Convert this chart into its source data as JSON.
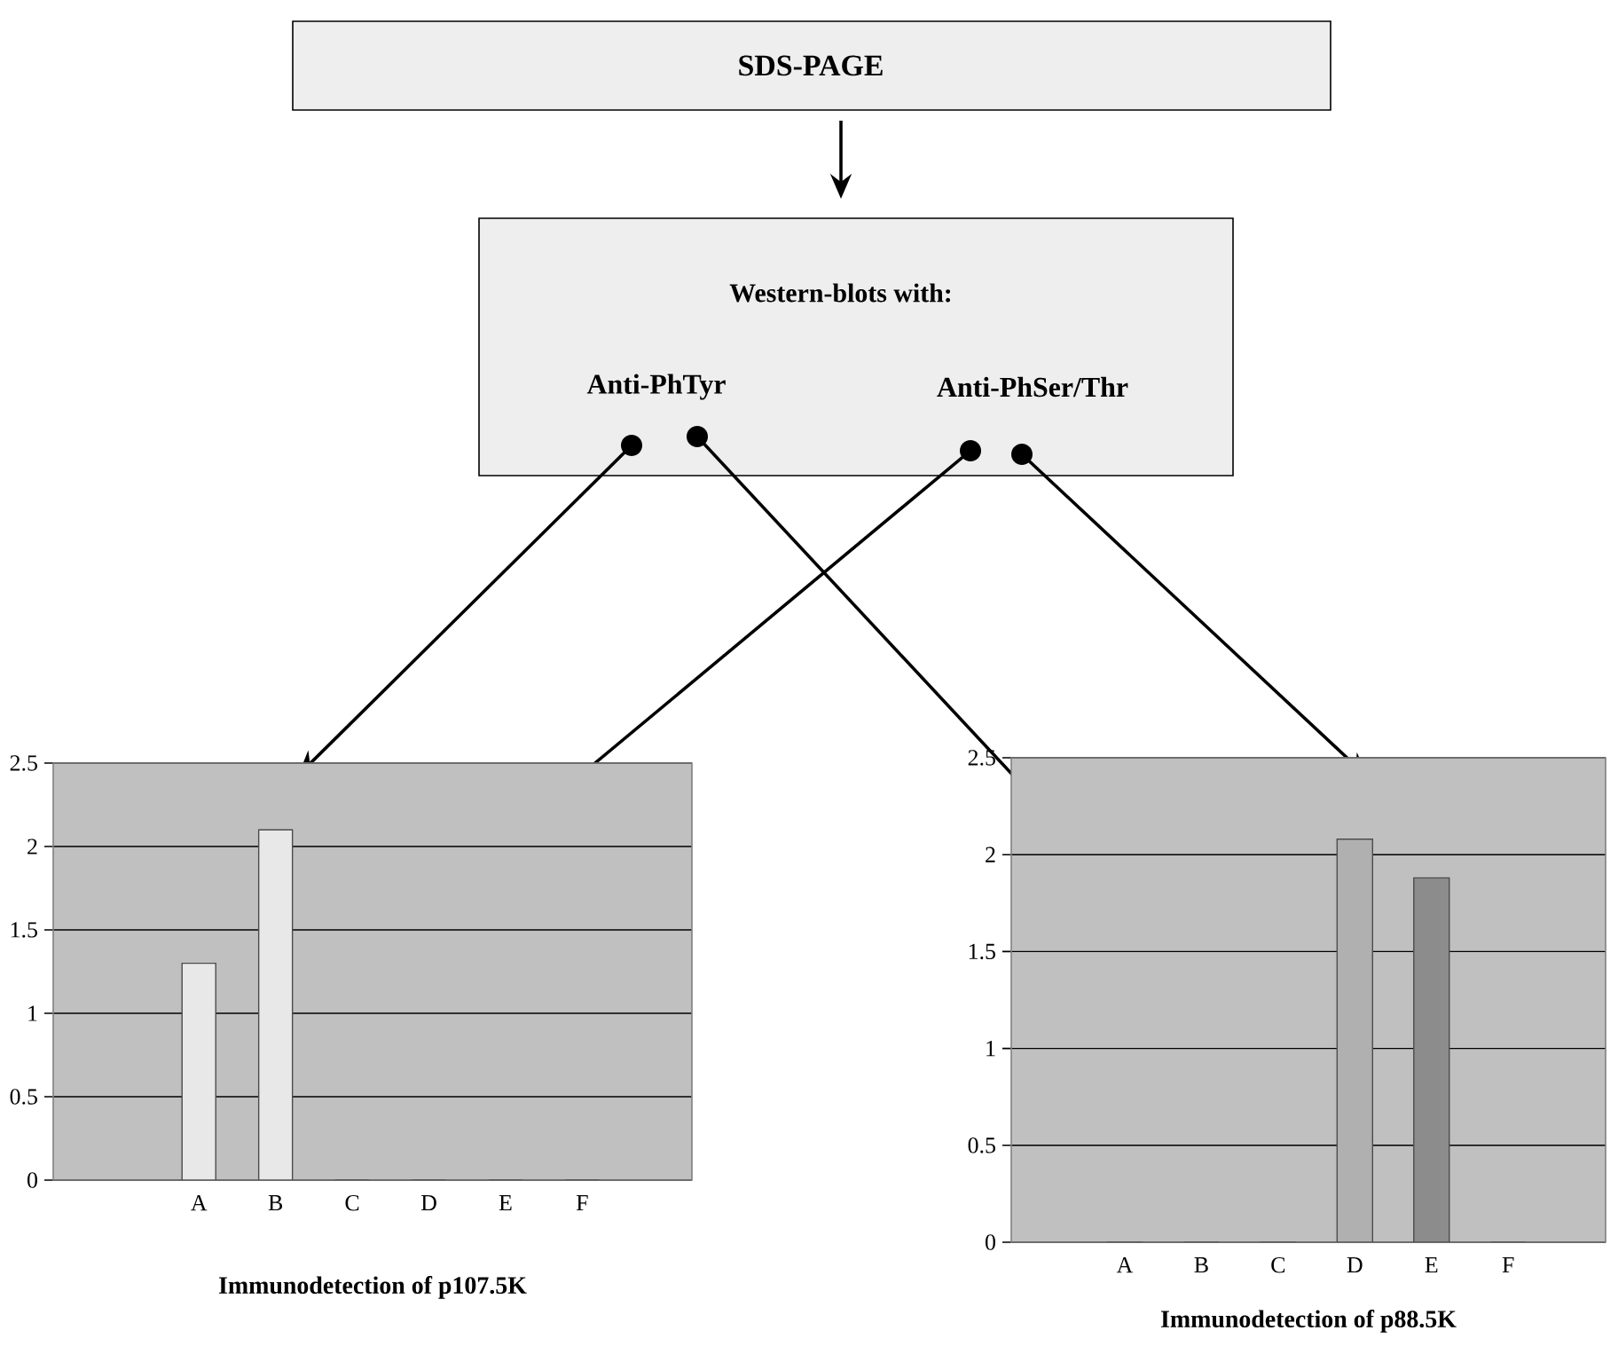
{
  "chart_data": [
    {
      "type": "other",
      "annotations": [
        "SDS-PAGE",
        "Western-blots with:",
        "Anti-PhTyr",
        "Anti-PhSer/Thr"
      ]
    },
    {
      "type": "bar",
      "xlabel": "Immunodetection of p107.5K",
      "categories": [
        "A",
        "B",
        "C",
        "D",
        "E",
        "F"
      ],
      "values": [
        1.3,
        2.1,
        0,
        0,
        0,
        0
      ],
      "colors": [
        "#e8e8e8",
        "#e8e8e8",
        "#e8e8e8",
        "#e8e8e8",
        "#e8e8e8",
        "#e8e8e8"
      ],
      "ylim": [
        0,
        2.5
      ],
      "yticks": [
        0,
        0.5,
        1,
        1.5,
        2,
        2.5
      ],
      "grid": "y"
    },
    {
      "type": "bar",
      "xlabel": "Immunodetection of p88.5K",
      "categories": [
        "A",
        "B",
        "C",
        "D",
        "E",
        "F"
      ],
      "values": [
        0,
        0,
        0,
        2.08,
        1.88,
        0
      ],
      "colors": [
        "#b0b0b0",
        "#b0b0b0",
        "#b0b0b0",
        "#b0b0b0",
        "#8c8c8c",
        "#b0b0b0"
      ],
      "ylim": [
        0,
        2.5
      ],
      "yticks": [
        0,
        0.5,
        1,
        1.5,
        2,
        2.5
      ],
      "grid": "y"
    }
  ]
}
